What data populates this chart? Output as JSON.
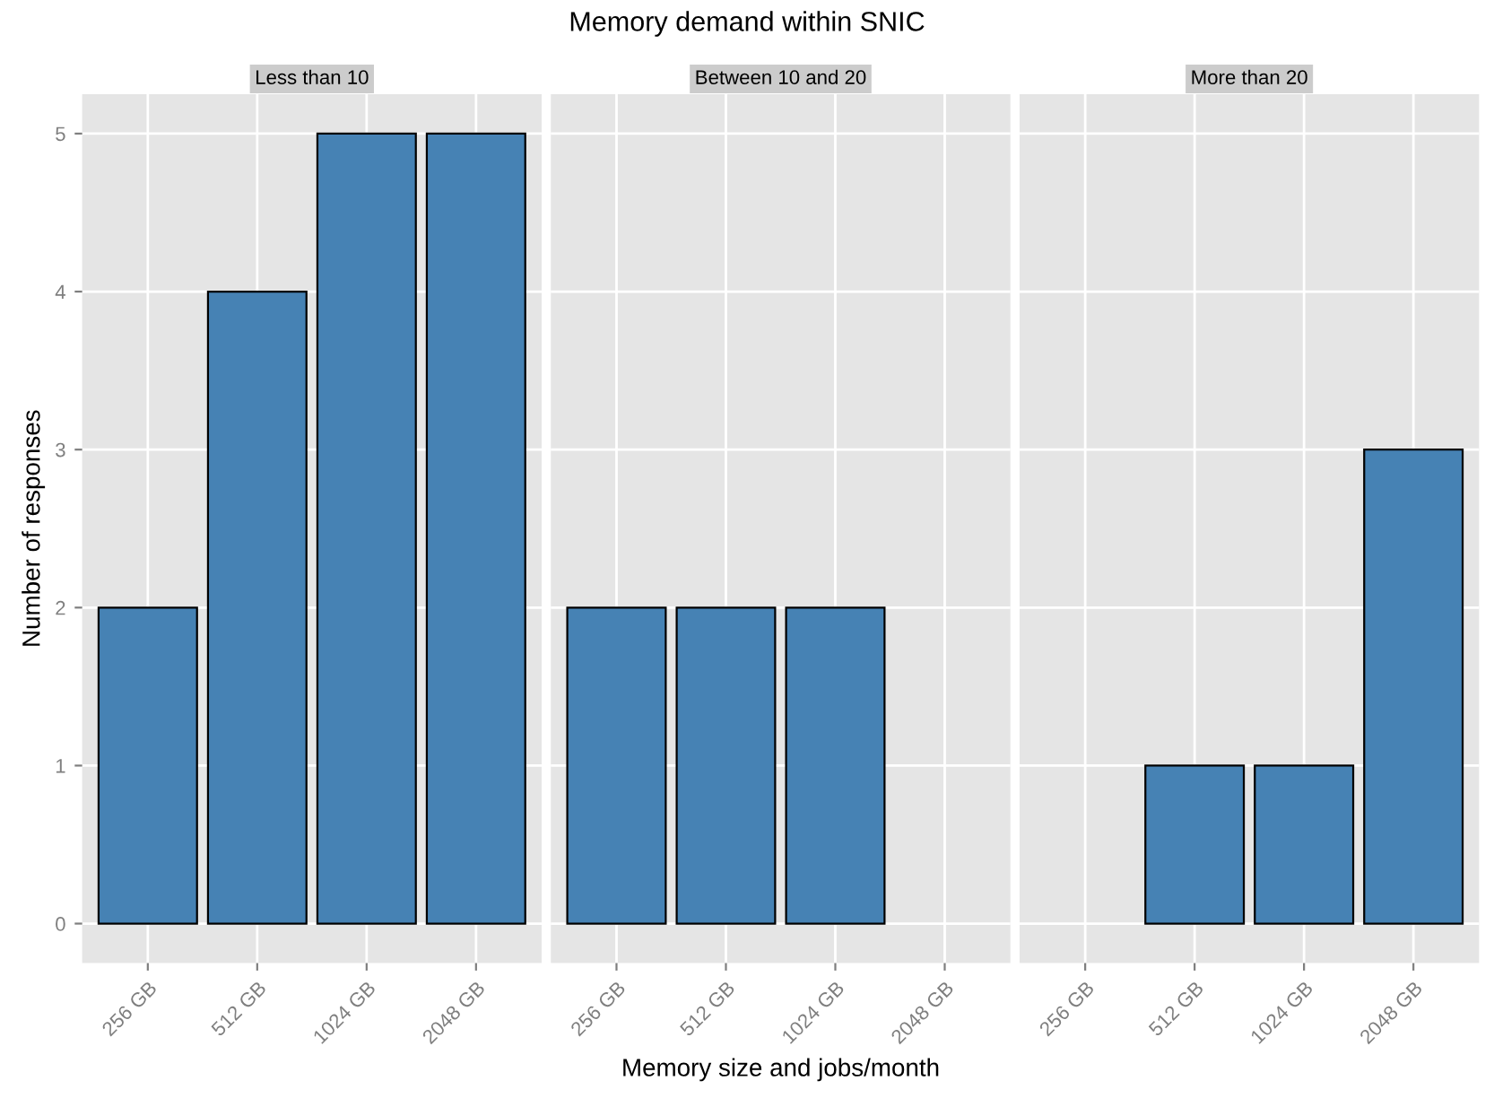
{
  "chart_data": [
    {
      "type": "bar",
      "subtitle": "Less than 10",
      "ylabel": "Number of responses",
      "categories": [
        "256 GB",
        "512 GB",
        "1024 GB",
        "2048 GB"
      ],
      "values": [
        2,
        4,
        5,
        5
      ],
      "color": "#4682b4",
      "ylim": [
        -0.25,
        5.25
      ],
      "yticks": [
        0,
        1,
        2,
        3,
        4,
        5
      ],
      "grid": true
    },
    {
      "type": "bar",
      "title": "Memory demand within SNIC",
      "subtitle": "Between 10 and 20",
      "xlabel": "Memory size and jobs/month",
      "categories": [
        "256 GB",
        "512 GB",
        "1024 GB",
        "2048 GB"
      ],
      "values": [
        2,
        2,
        2,
        null
      ],
      "color": "#4682b4",
      "ylim": [
        -0.25,
        5.25
      ],
      "yticks": [
        0,
        1,
        2,
        3,
        4,
        5
      ],
      "grid": true,
      "tick_labels": "x"
    },
    {
      "type": "bar",
      "subtitle": "More than 20",
      "categories": [
        "256 GB",
        "512 GB",
        "1024 GB",
        "2048 GB"
      ],
      "values": [
        null,
        1,
        1,
        3
      ],
      "color": "#4682b4",
      "ylim": [
        -0.25,
        5.25
      ],
      "yticks": [
        0,
        1,
        2,
        3,
        4,
        5
      ],
      "grid": true,
      "tick_labels": "x"
    }
  ]
}
